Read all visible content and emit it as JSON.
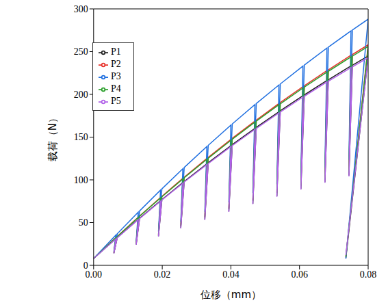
{
  "chart_data": {
    "type": "line",
    "x_label": "位移（mm）",
    "y_label": "载荷（N）",
    "legend": "upper left",
    "grid": false,
    "x": [
      0,
      0.0065,
      0.0059,
      0.0069,
      0.013,
      0.0124,
      0.0134,
      0.0195,
      0.0189,
      0.0199,
      0.026,
      0.0254,
      0.0264,
      0.033,
      0.0324,
      0.0334,
      0.04,
      0.0394,
      0.0404,
      0.047,
      0.0464,
      0.0474,
      0.054,
      0.0534,
      0.0544,
      0.061,
      0.0604,
      0.0614,
      0.068,
      0.0674,
      0.0684,
      0.075,
      0.0744,
      0.0754,
      0.08,
      0.0735
    ],
    "series": [
      {
        "name": "P1",
        "color": "#222222",
        "values": [
          8,
          31.3,
          14.1,
          32.5,
          53.9,
          24.3,
          55.1,
          75.7,
          34.1,
          76.9,
          96.8,
          43.6,
          98.1,
          118.8,
          53.5,
          120,
          140,
          63,
          141.2,
          160.3,
          72.1,
          161.4,
          179.7,
          80.9,
          180.8,
          198.4,
          89.3,
          199.4,
          216.3,
          97.3,
          217.1,
          233.3,
          105,
          234.1,
          244.9,
          8
        ]
      },
      {
        "name": "P2",
        "color": "#e8312a",
        "values": [
          8,
          32.6,
          14.7,
          33.9,
          56.4,
          25.4,
          57.7,
          79.4,
          35.7,
          80.8,
          101.8,
          45.8,
          103.1,
          125,
          56.3,
          126.2,
          147.3,
          66.3,
          148.6,
          168.7,
          75.9,
          169.9,
          189.3,
          85.2,
          190.4,
          209,
          94.1,
          210,
          227.9,
          102.6,
          228.7,
          245.8,
          110.6,
          246.6,
          258,
          10
        ]
      },
      {
        "name": "P3",
        "color": "#1f6fe0",
        "values": [
          8,
          35.5,
          16,
          37,
          62.2,
          28,
          63.7,
          88,
          39.6,
          89.5,
          113,
          50.9,
          114.5,
          139,
          62.6,
          140.4,
          164,
          73.8,
          165.4,
          188,
          84.6,
          189.3,
          211,
          95,
          212.2,
          233.1,
          104.9,
          234.2,
          254.2,
          114.4,
          255.2,
          274.3,
          123.4,
          275.2,
          288,
          8
        ]
      },
      {
        "name": "P4",
        "color": "#2ca02c",
        "values": [
          8,
          32.4,
          14.6,
          33.7,
          56,
          25.2,
          57.4,
          78.9,
          35.5,
          80.2,
          101,
          45.5,
          102.4,
          124.1,
          55.8,
          125.3,
          146.2,
          65.8,
          147.5,
          167.5,
          75.4,
          168.6,
          187.9,
          84.6,
          188.9,
          207.4,
          93.3,
          208.4,
          226.1,
          101.7,
          227,
          243.9,
          109.8,
          244.7,
          256.1,
          10
        ]
      },
      {
        "name": "P5",
        "color": "#b060e8",
        "values": [
          8,
          31.1,
          14,
          32.3,
          53.5,
          24.1,
          54.7,
          75.1,
          33.8,
          76.4,
          96.1,
          43.2,
          97.4,
          117.9,
          53.1,
          119.1,
          138.9,
          62.5,
          140.1,
          159,
          71.6,
          160.1,
          178.3,
          80.2,
          179.3,
          196.9,
          88.6,
          197.8,
          214.6,
          96.6,
          215.4,
          231.4,
          104.1,
          232.2,
          242.9,
          12
        ]
      }
    ],
    "xlim": [
      0,
      0.08
    ],
    "xticks": [
      {
        "value": 0,
        "label": "0.00"
      },
      {
        "value": 0.02,
        "label": "0.02"
      },
      {
        "value": 0.04,
        "label": "0.04"
      },
      {
        "value": 0.06,
        "label": "0.06"
      },
      {
        "value": 0.08,
        "label": "0.08"
      }
    ],
    "ylim": [
      0,
      300
    ],
    "yticks": [
      0,
      50,
      100,
      150,
      200,
      250,
      300
    ]
  }
}
